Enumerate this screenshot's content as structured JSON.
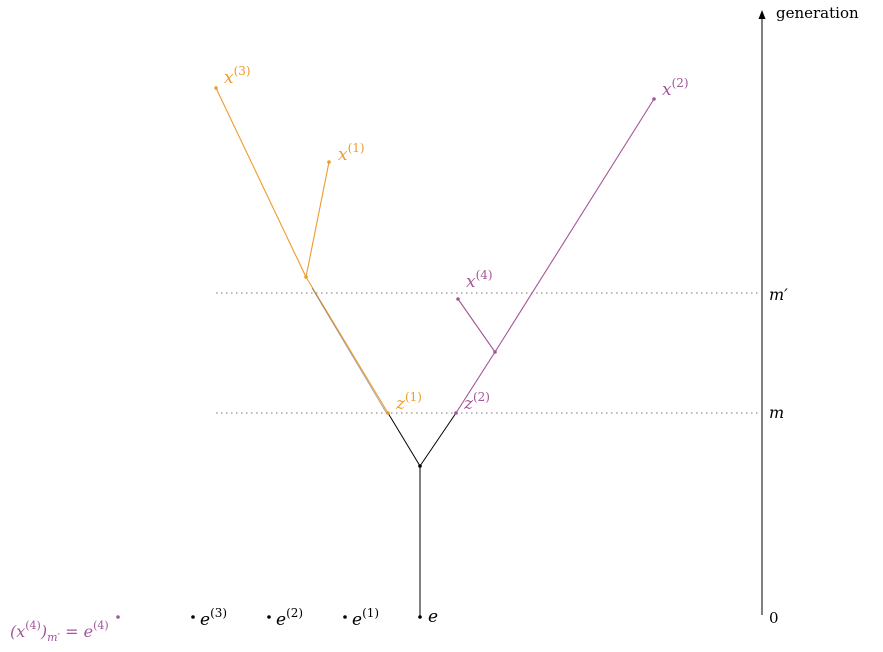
{
  "colors": {
    "orange": "#EE9B2E",
    "purple": "#A3569A",
    "black": "#000000",
    "grid": "#777777"
  },
  "axis": {
    "title": "generation",
    "label_m_prime": "m′",
    "label_m": "m",
    "label_zero": "0"
  },
  "labels": {
    "x3": "x",
    "x3_sup": "(3)",
    "x1": "x",
    "x1_sup": "(1)",
    "x2": "x",
    "x2_sup": "(2)",
    "x4": "x",
    "x4_sup": "(4)",
    "z1": "z",
    "z1_sup": "(1)",
    "z2": "z",
    "z2_sup": "(2)",
    "e": "e",
    "e1": "e",
    "e1_sup": "(1)",
    "e2": "e",
    "e2_sup": "(2)",
    "e3": "e",
    "e3_sup": "(3)",
    "e4_lhs_open": "(x",
    "e4_lhs_sup": "(4)",
    "e4_lhs_close": ")",
    "e4_lhs_sub": "m′",
    "e4_eq": " = e",
    "e4_rhs_sup": "(4)"
  }
}
